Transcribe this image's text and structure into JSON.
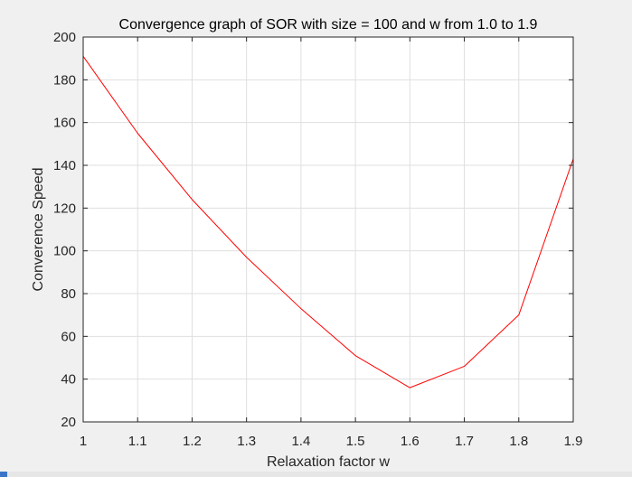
{
  "chart_data": {
    "type": "line",
    "title": "Convergence graph of SOR with size = 100 and w from 1.0 to 1.9",
    "xlabel": "Relaxation factor w",
    "ylabel": "Converence Speed",
    "xlim": [
      1.0,
      1.9
    ],
    "ylim": [
      20,
      200
    ],
    "xticks": [
      "1",
      "1.1",
      "1.2",
      "1.3",
      "1.4",
      "1.5",
      "1.6",
      "1.7",
      "1.8",
      "1.9"
    ],
    "yticks": [
      "20",
      "40",
      "60",
      "80",
      "100",
      "120",
      "140",
      "160",
      "180",
      "200"
    ],
    "grid": true,
    "x": [
      1.0,
      1.1,
      1.2,
      1.3,
      1.4,
      1.5,
      1.6,
      1.7,
      1.8,
      1.9
    ],
    "y": [
      191,
      155,
      124,
      97,
      73,
      51,
      36,
      46,
      70,
      143
    ],
    "line_color": "#ff0000"
  }
}
